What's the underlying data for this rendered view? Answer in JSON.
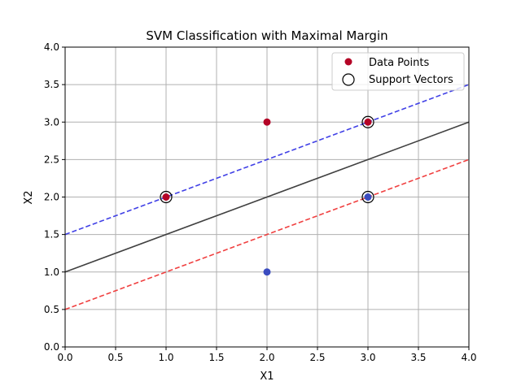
{
  "chart_data": {
    "type": "scatter",
    "title": "SVM Classification with Maximal Margin",
    "xlabel": "X1",
    "ylabel": "X2",
    "xlim": [
      0.0,
      4.0
    ],
    "ylim": [
      0.0,
      4.0
    ],
    "grid": true,
    "legend_position": "top-right",
    "x_ticks": [
      "0.0",
      "0.5",
      "1.0",
      "1.5",
      "2.0",
      "2.5",
      "3.0",
      "3.5",
      "4.0"
    ],
    "y_ticks": [
      "0.0",
      "0.5",
      "1.0",
      "1.5",
      "2.0",
      "2.5",
      "3.0",
      "3.5",
      "4.0"
    ],
    "legend": [
      {
        "label": "Data Points",
        "marker": "filled-circle",
        "color": "#b40426"
      },
      {
        "label": "Support Vectors",
        "marker": "hollow-circle",
        "color": "#000000"
      }
    ],
    "points": [
      {
        "x": 1,
        "y": 2,
        "color": "#b40426"
      },
      {
        "x": 2,
        "y": 3,
        "color": "#b40426"
      },
      {
        "x": 3,
        "y": 3,
        "color": "#b40426"
      },
      {
        "x": 2,
        "y": 1,
        "color": "#3b4cc0"
      },
      {
        "x": 3,
        "y": 2,
        "color": "#3b4cc0"
      }
    ],
    "support_vectors": [
      {
        "x": 1,
        "y": 2
      },
      {
        "x": 3,
        "y": 3
      },
      {
        "x": 3,
        "y": 2
      }
    ],
    "lines": [
      {
        "role": "decision-boundary",
        "slope": 0.5,
        "intercept": 1.0,
        "color": "#404040",
        "dashed": false
      },
      {
        "role": "margin-upper",
        "slope": 0.5,
        "intercept": 1.5,
        "color": "#4040e6",
        "dashed": true
      },
      {
        "role": "margin-lower",
        "slope": 0.5,
        "intercept": 0.5,
        "color": "#f04040",
        "dashed": true
      }
    ]
  }
}
